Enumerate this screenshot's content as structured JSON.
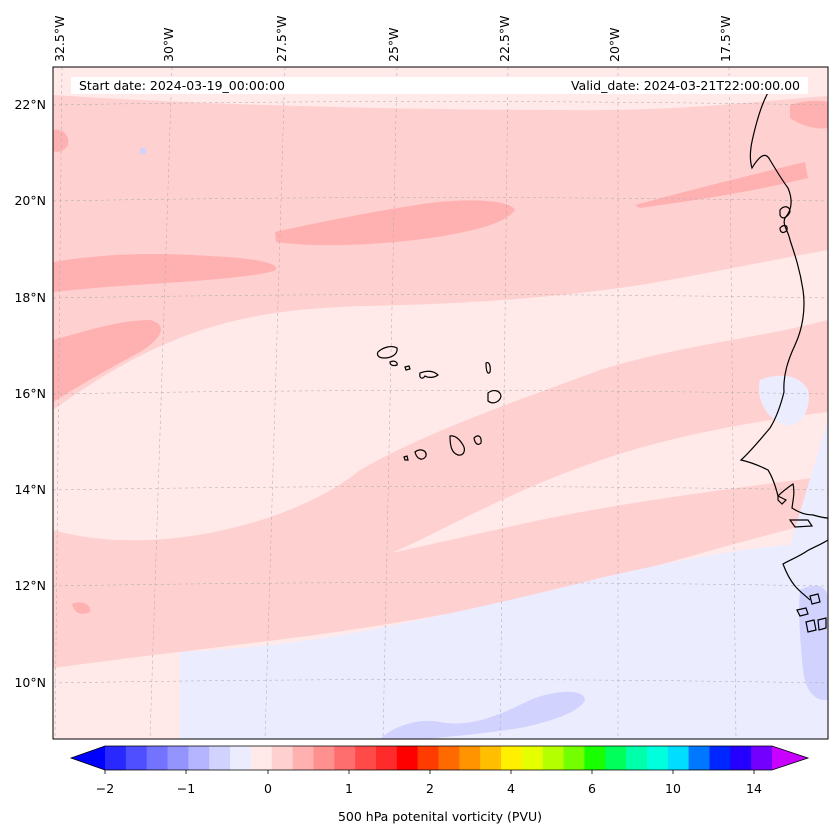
{
  "map": {
    "longitude_labels": [
      "32.5°W",
      "30°W",
      "27.5°W",
      "25°W",
      "22.5°W",
      "20°W",
      "17.5°W"
    ],
    "latitude_labels": [
      "22°N",
      "20°N",
      "18°N",
      "16°N",
      "14°N",
      "12°N",
      "10°N"
    ],
    "start_date": "Start date: 2024-03-19_00:00:00",
    "valid_date": "Valid_date: 2024-03-21T22:00:00.00",
    "gridlines": true,
    "extent": {
      "lon": [
        -32.5,
        -15.0
      ],
      "lat": [
        9.0,
        22.8
      ]
    }
  },
  "colorbar": {
    "label": "500 hPa potenital vorticity (PVU)",
    "tick_labels": [
      "−2",
      "−1",
      "0",
      "1",
      "2",
      "4",
      "6",
      "10",
      "14"
    ],
    "extend": "both",
    "colors": [
      "#0000ff",
      "#2828ff",
      "#4f4fff",
      "#7373ff",
      "#9494ff",
      "#b4b4ff",
      "#d2d2ff",
      "#ececff",
      "#ffe9e9",
      "#ffd0d0",
      "#ffb1b1",
      "#ff9090",
      "#ff6e6e",
      "#ff4a4a",
      "#ff2a2a",
      "#ff0000",
      "#ff3c00",
      "#ff6a00",
      "#ff9400",
      "#ffbf00",
      "#ffef00",
      "#e6ff00",
      "#b4ff00",
      "#73ff00",
      "#19ff00",
      "#00ff5a",
      "#00ffaa",
      "#00ffdd",
      "#00ddff",
      "#0077ff",
      "#0026ff",
      "#2600ff",
      "#7300ff",
      "#c800ff"
    ]
  },
  "field_colors": {
    "background": "#ffe9e9",
    "level_1": "#ffd0d0",
    "level_2": "#ffb1b1",
    "negative_1": "#ececff",
    "negative_2": "#d2d2ff",
    "coastline": "#000000"
  }
}
